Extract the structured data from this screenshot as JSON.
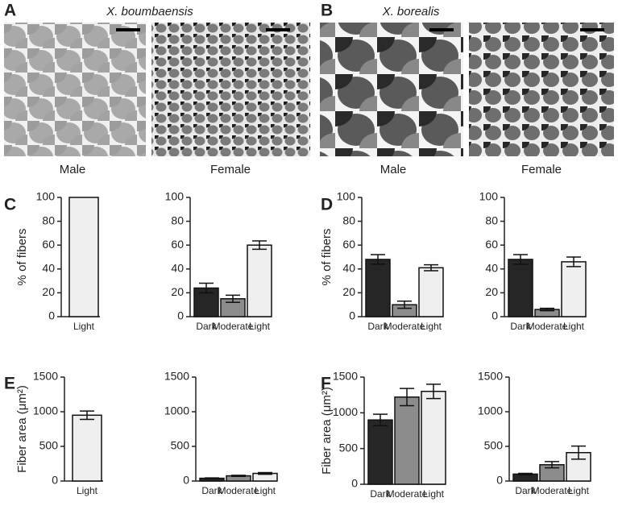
{
  "panel_labels": [
    "A",
    "B",
    "C",
    "D",
    "E",
    "F"
  ],
  "species": [
    "X. boumbaensis",
    "X. borealis"
  ],
  "image_captions": [
    "Male",
    "Female",
    "Male",
    "Female"
  ],
  "chart_data": [
    {
      "type": "bar",
      "ylabel": "% of fibers",
      "categories": [
        "Light"
      ],
      "values": [
        100
      ],
      "colors": [
        "#efefef"
      ],
      "ylim": [
        0,
        100
      ],
      "yticks": [
        0,
        20,
        40,
        60,
        80,
        100
      ]
    },
    {
      "type": "bar",
      "categories": [
        "Dark",
        "Moderate",
        "Light"
      ],
      "values": [
        24,
        15,
        60
      ],
      "errors": [
        4,
        3,
        3.5
      ],
      "colors": [
        "#262626",
        "#8c8c8c",
        "#efefef"
      ],
      "ylim": [
        0,
        100
      ],
      "yticks": [
        0,
        20,
        40,
        60,
        80,
        100
      ]
    },
    {
      "type": "bar",
      "ylabel": "% of fibers",
      "categories": [
        "Dark",
        "Moderate",
        "Light"
      ],
      "values": [
        48,
        10,
        41
      ],
      "errors": [
        4,
        3,
        2.5
      ],
      "colors": [
        "#262626",
        "#8c8c8c",
        "#efefef"
      ],
      "ylim": [
        0,
        100
      ],
      "yticks": [
        0,
        20,
        40,
        60,
        80,
        100
      ]
    },
    {
      "type": "bar",
      "categories": [
        "Dark",
        "Moderate",
        "Light"
      ],
      "values": [
        48,
        6,
        46
      ],
      "errors": [
        4,
        1,
        4
      ],
      "colors": [
        "#262626",
        "#8c8c8c",
        "#efefef"
      ],
      "ylim": [
        0,
        100
      ],
      "yticks": [
        0,
        20,
        40,
        60,
        80,
        100
      ]
    },
    {
      "type": "bar",
      "ylabel": "Fiber area (μm²)",
      "categories": [
        "Light"
      ],
      "values": [
        950
      ],
      "errors": [
        60
      ],
      "colors": [
        "#efefef"
      ],
      "ylim": [
        0,
        1500
      ],
      "yticks": [
        0,
        500,
        1000,
        1500
      ]
    },
    {
      "type": "bar",
      "categories": [
        "Dark",
        "Moderate",
        "Light"
      ],
      "values": [
        40,
        75,
        110
      ],
      "errors": [
        5,
        8,
        12
      ],
      "colors": [
        "#262626",
        "#8c8c8c",
        "#efefef"
      ],
      "ylim": [
        0,
        1500
      ],
      "yticks": [
        0,
        500,
        1000,
        1500
      ]
    },
    {
      "type": "bar",
      "ylabel": "Fiber area (μm²)",
      "categories": [
        "Dark",
        "Moderate",
        "Light"
      ],
      "values": [
        900,
        1220,
        1300
      ],
      "errors": [
        80,
        120,
        100
      ],
      "colors": [
        "#262626",
        "#8c8c8c",
        "#efefef"
      ],
      "ylim": [
        0,
        1500
      ],
      "yticks": [
        0,
        500,
        1000,
        1500
      ]
    },
    {
      "type": "bar",
      "categories": [
        "Dark",
        "Moderate",
        "Light"
      ],
      "values": [
        100,
        235,
        410
      ],
      "errors": [
        10,
        45,
        95
      ],
      "colors": [
        "#262626",
        "#8c8c8c",
        "#efefef"
      ],
      "ylim": [
        0,
        1500
      ],
      "yticks": [
        0,
        500,
        1000,
        1500
      ]
    }
  ]
}
